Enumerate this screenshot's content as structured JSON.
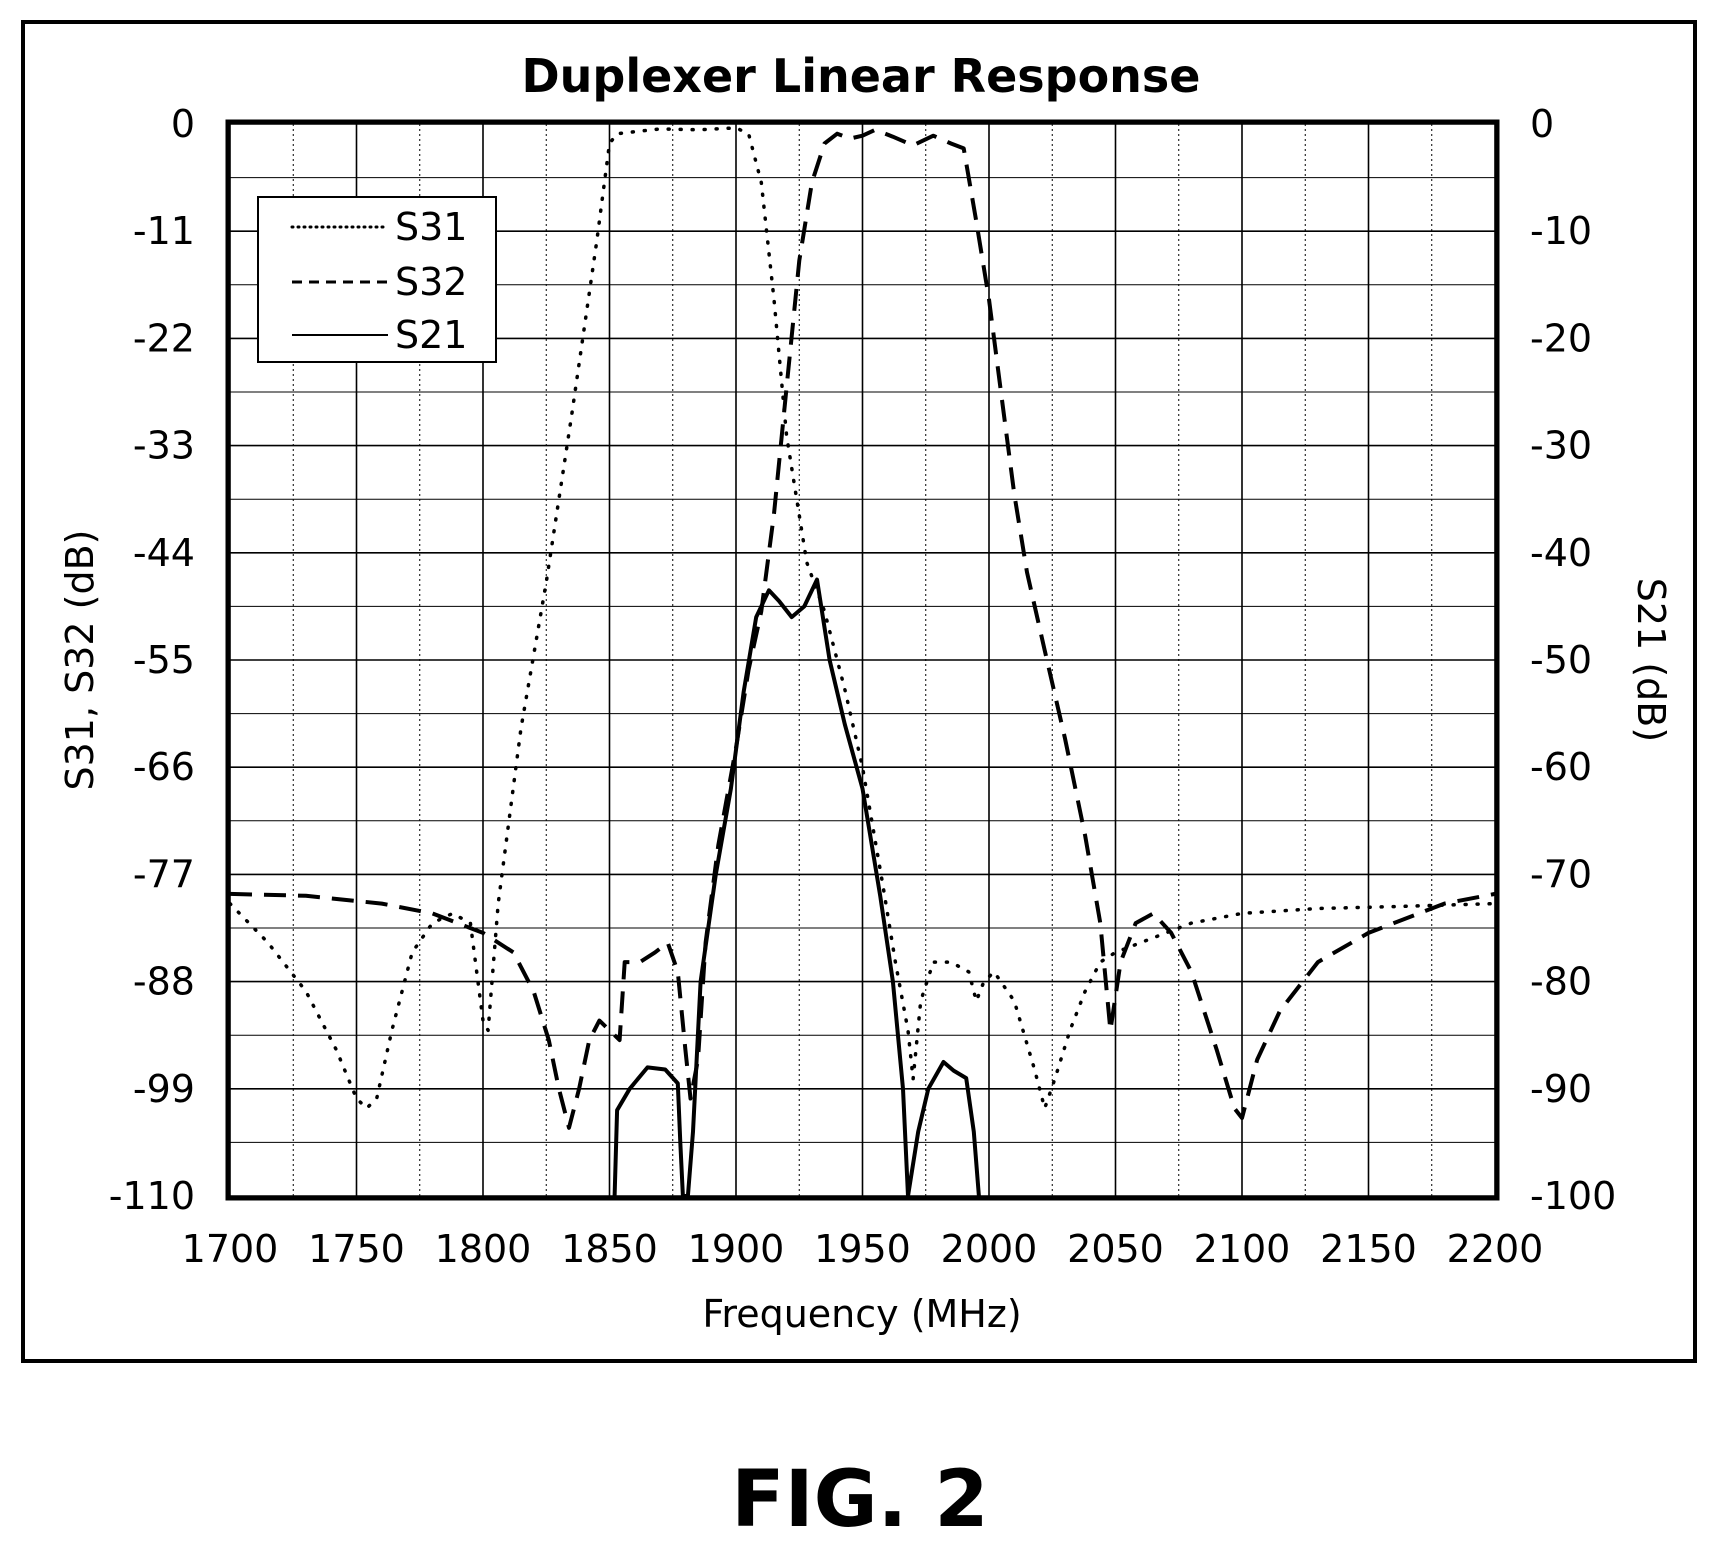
{
  "figure_label": "FIG. 2",
  "chart_data": {
    "type": "line",
    "title": "Duplexer Linear Response",
    "xlabel": "Frequency (MHz)",
    "ylabel_left": "S31, S32 (dB)",
    "ylabel_right": "S21 (dB)",
    "xlim": [
      1700,
      2200
    ],
    "ylim_left": [
      -110,
      0
    ],
    "ylim_right": [
      -100,
      0
    ],
    "x_ticks": [
      "1700",
      "1750",
      "1800",
      "1850",
      "1900",
      "1950",
      "2000",
      "2050",
      "2100",
      "2150",
      "2200"
    ],
    "y_ticks_left": [
      "0",
      "-11",
      "-22",
      "-33",
      "-44",
      "-55",
      "-66",
      "-77",
      "-88",
      "-99",
      "-110"
    ],
    "y_ticks_right": [
      "0",
      "-10",
      "-20",
      "-30",
      "-40",
      "-50",
      "-60",
      "-70",
      "-80",
      "-90",
      "-100"
    ],
    "grid": true,
    "legend_position": "top-left",
    "series": [
      {
        "name": "S31",
        "style": "dotted",
        "axis": "left",
        "points": [
          [
            1700,
            -80
          ],
          [
            1715,
            -84
          ],
          [
            1730,
            -89
          ],
          [
            1742,
            -95
          ],
          [
            1750,
            -100
          ],
          [
            1754,
            -101
          ],
          [
            1758,
            -100
          ],
          [
            1764,
            -93
          ],
          [
            1772,
            -85
          ],
          [
            1780,
            -82
          ],
          [
            1788,
            -81
          ],
          [
            1795,
            -82
          ],
          [
            1800,
            -92
          ],
          [
            1802,
            -93
          ],
          [
            1806,
            -80
          ],
          [
            1815,
            -62
          ],
          [
            1825,
            -47
          ],
          [
            1835,
            -30
          ],
          [
            1845,
            -12
          ],
          [
            1850,
            -2
          ],
          [
            1853,
            -1
          ],
          [
            1870,
            -0.5
          ],
          [
            1885,
            -0.6
          ],
          [
            1900,
            -0.4
          ],
          [
            1905,
            -1
          ],
          [
            1910,
            -6
          ],
          [
            1915,
            -18
          ],
          [
            1920,
            -32
          ],
          [
            1928,
            -45
          ],
          [
            1935,
            -50
          ],
          [
            1943,
            -58
          ],
          [
            1950,
            -66
          ],
          [
            1958,
            -78
          ],
          [
            1963,
            -86
          ],
          [
            1968,
            -93
          ],
          [
            1970,
            -98
          ],
          [
            1973,
            -90
          ],
          [
            1978,
            -86
          ],
          [
            1985,
            -86
          ],
          [
            1992,
            -87
          ],
          [
            1995,
            -90
          ],
          [
            1998,
            -88
          ],
          [
            2002,
            -87
          ],
          [
            2010,
            -90
          ],
          [
            2018,
            -97
          ],
          [
            2022,
            -101
          ],
          [
            2026,
            -98
          ],
          [
            2032,
            -93
          ],
          [
            2038,
            -89
          ],
          [
            2044,
            -86
          ],
          [
            2050,
            -85
          ],
          [
            2060,
            -84
          ],
          [
            2080,
            -82
          ],
          [
            2100,
            -81
          ],
          [
            2130,
            -80.5
          ],
          [
            2160,
            -80.3
          ],
          [
            2200,
            -80
          ]
        ]
      },
      {
        "name": "S32",
        "style": "dashed",
        "axis": "left",
        "points": [
          [
            1700,
            -79
          ],
          [
            1730,
            -79.2
          ],
          [
            1760,
            -80
          ],
          [
            1780,
            -81
          ],
          [
            1800,
            -83
          ],
          [
            1812,
            -85
          ],
          [
            1820,
            -89
          ],
          [
            1826,
            -94
          ],
          [
            1830,
            -99
          ],
          [
            1834,
            -103
          ],
          [
            1838,
            -99
          ],
          [
            1842,
            -94
          ],
          [
            1846,
            -92
          ],
          [
            1850,
            -93
          ],
          [
            1854,
            -94
          ],
          [
            1856,
            -86
          ],
          [
            1862,
            -86
          ],
          [
            1868,
            -85
          ],
          [
            1873,
            -84
          ],
          [
            1877,
            -87
          ],
          [
            1880,
            -95
          ],
          [
            1882,
            -100
          ],
          [
            1885,
            -96
          ],
          [
            1888,
            -84
          ],
          [
            1893,
            -74
          ],
          [
            1900,
            -64
          ],
          [
            1905,
            -56
          ],
          [
            1910,
            -50
          ],
          [
            1915,
            -40
          ],
          [
            1920,
            -27
          ],
          [
            1925,
            -14
          ],
          [
            1930,
            -6
          ],
          [
            1935,
            -2
          ],
          [
            1940,
            -1
          ],
          [
            1945,
            -1.5
          ],
          [
            1950,
            -1.2
          ],
          [
            1955,
            -0.6
          ],
          [
            1962,
            -1.3
          ],
          [
            1970,
            -2.2
          ],
          [
            1978,
            -1.2
          ],
          [
            1985,
            -2
          ],
          [
            1990,
            -2.5
          ],
          [
            1995,
            -10
          ],
          [
            2000,
            -18
          ],
          [
            2005,
            -28
          ],
          [
            2010,
            -38
          ],
          [
            2015,
            -46
          ],
          [
            2022,
            -54
          ],
          [
            2030,
            -63
          ],
          [
            2038,
            -73
          ],
          [
            2044,
            -82
          ],
          [
            2048,
            -93
          ],
          [
            2052,
            -86
          ],
          [
            2058,
            -82
          ],
          [
            2065,
            -81
          ],
          [
            2072,
            -83
          ],
          [
            2080,
            -87
          ],
          [
            2090,
            -95
          ],
          [
            2097,
            -101
          ],
          [
            2100,
            -102
          ],
          [
            2106,
            -96
          ],
          [
            2115,
            -91
          ],
          [
            2130,
            -86
          ],
          [
            2150,
            -83
          ],
          [
            2180,
            -80
          ],
          [
            2200,
            -79
          ]
        ]
      },
      {
        "name": "S21",
        "style": "solid",
        "axis": "right",
        "points": [
          [
            1852,
            -100
          ],
          [
            1853,
            -92
          ],
          [
            1858,
            -90
          ],
          [
            1865,
            -88
          ],
          [
            1872,
            -88.2
          ],
          [
            1877,
            -89.5
          ],
          [
            1878,
            -95
          ],
          [
            1879,
            -100
          ],
          [
            1881,
            -100
          ],
          [
            1883,
            -94
          ],
          [
            1886,
            -80
          ],
          [
            1892,
            -70
          ],
          [
            1898,
            -62
          ],
          [
            1903,
            -53
          ],
          [
            1908,
            -46
          ],
          [
            1913,
            -43.5
          ],
          [
            1917,
            -44.5
          ],
          [
            1922,
            -46
          ],
          [
            1927,
            -45
          ],
          [
            1932,
            -42.5
          ],
          [
            1937,
            -50
          ],
          [
            1943,
            -56
          ],
          [
            1950,
            -62
          ],
          [
            1957,
            -72
          ],
          [
            1962,
            -80
          ],
          [
            1966,
            -90
          ],
          [
            1968,
            -100
          ],
          [
            1972,
            -94
          ],
          [
            1976,
            -90
          ],
          [
            1982,
            -87.5
          ],
          [
            1986,
            -88.3
          ],
          [
            1991,
            -89
          ],
          [
            1994,
            -94
          ],
          [
            1996,
            -100
          ]
        ]
      }
    ]
  }
}
